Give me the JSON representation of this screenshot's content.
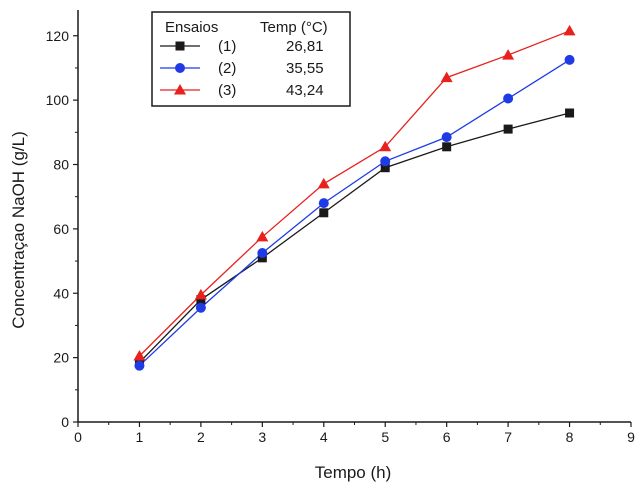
{
  "chart_data": {
    "type": "line",
    "title": "",
    "xlabel": "Tempo (h)",
    "ylabel": "Concentraçao NaOH (g/L)",
    "xlim": [
      0,
      9
    ],
    "ylim": [
      0,
      128
    ],
    "xticks": [
      0,
      1,
      2,
      3,
      4,
      5,
      6,
      7,
      8,
      9
    ],
    "yticks": [
      0,
      20,
      40,
      60,
      80,
      100,
      120
    ],
    "grid": false,
    "legend": {
      "placement": "top-left",
      "header_col1": "Ensaios",
      "header_col2": "Temp (°C)"
    },
    "x": [
      1,
      2,
      3,
      4,
      5,
      6,
      7,
      8
    ],
    "series": [
      {
        "name": "(1)",
        "temp": "26,81",
        "color": "#1a1a1a",
        "marker": "square",
        "values": [
          18.5,
          38.0,
          51.0,
          65.0,
          79.0,
          85.5,
          91.0,
          96.0
        ]
      },
      {
        "name": "(2)",
        "temp": "35,55",
        "color": "#1f3be6",
        "marker": "circle",
        "values": [
          17.5,
          35.5,
          52.5,
          68.0,
          81.0,
          88.5,
          100.5,
          112.5
        ]
      },
      {
        "name": "(3)",
        "temp": "43,24",
        "color": "#e8211d",
        "marker": "triangle",
        "values": [
          20.5,
          39.5,
          57.5,
          74.0,
          85.5,
          107.0,
          114.0,
          121.5
        ]
      }
    ]
  }
}
